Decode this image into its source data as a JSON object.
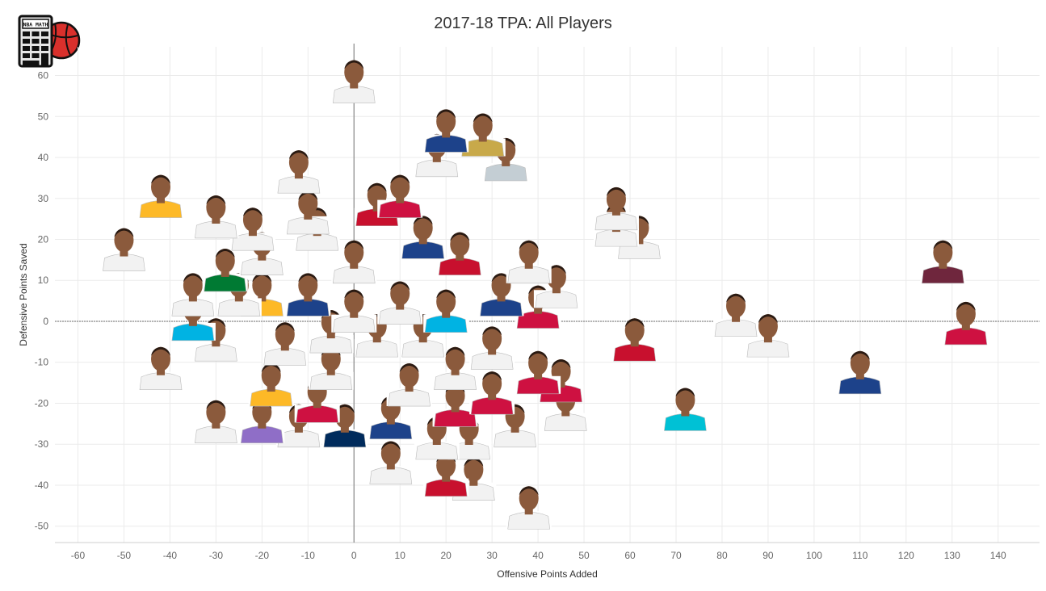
{
  "title": "2017-18 TPA: All Players",
  "logo": {
    "text": "NBA MATH"
  },
  "chart_data": {
    "type": "scatter",
    "title": "2017-18 TPA: All Players",
    "xlabel": "Offensive Points Added",
    "ylabel": "Defensive Points Saved",
    "xlim": [
      -65,
      149
    ],
    "ylim": [
      -54,
      67
    ],
    "xticks": [
      -60,
      -50,
      -40,
      -30,
      -20,
      -10,
      0,
      10,
      20,
      30,
      40,
      50,
      60,
      70,
      80,
      90,
      100,
      110,
      120,
      130,
      140
    ],
    "yticks": [
      -50,
      -40,
      -30,
      -20,
      -10,
      0,
      10,
      20,
      30,
      40,
      50,
      60
    ],
    "grid": true,
    "reference_lines": {
      "x": 0,
      "y": 0
    },
    "marker": "player headshot",
    "points": [
      {
        "x": 0,
        "y": 60,
        "jersey": "#f2f2f2"
      },
      {
        "x": 20,
        "y": 48,
        "jersey": "#1d428a"
      },
      {
        "x": 28,
        "y": 47,
        "jersey": "#c8a94a"
      },
      {
        "x": 33,
        "y": 41,
        "jersey": "#c4ced4"
      },
      {
        "x": 18,
        "y": 42,
        "jersey": "#f2f2f2"
      },
      {
        "x": -12,
        "y": 38,
        "jersey": "#f2f2f2"
      },
      {
        "x": -42,
        "y": 32,
        "jersey": "#fdb927"
      },
      {
        "x": 57,
        "y": 29,
        "jersey": "#f2f2f2"
      },
      {
        "x": 57,
        "y": 25,
        "jersey": "#f2f2f2"
      },
      {
        "x": 62,
        "y": 22,
        "jersey": "#f2f2f2"
      },
      {
        "x": -50,
        "y": 19,
        "jersey": "#f2f2f2"
      },
      {
        "x": 128,
        "y": 16,
        "jersey": "#6f263d"
      },
      {
        "x": -30,
        "y": 27,
        "jersey": "#f2f2f2"
      },
      {
        "x": -10,
        "y": 28,
        "jersey": "#f2f2f2"
      },
      {
        "x": 15,
        "y": 22,
        "jersey": "#1d428a"
      },
      {
        "x": 23,
        "y": 18,
        "jersey": "#c8102e"
      },
      {
        "x": 38,
        "y": 16,
        "jersey": "#f2f2f2"
      },
      {
        "x": 44,
        "y": 10,
        "jersey": "#f2f2f2"
      },
      {
        "x": 83,
        "y": 3,
        "jersey": "#f2f2f2"
      },
      {
        "x": 90,
        "y": -2,
        "jersey": "#f2f2f2"
      },
      {
        "x": 133,
        "y": 1,
        "jersey": "#ce1141"
      },
      {
        "x": 61,
        "y": -3,
        "jersey": "#c8102e"
      },
      {
        "x": 110,
        "y": -11,
        "jersey": "#1d428a"
      },
      {
        "x": 72,
        "y": -20,
        "jersey": "#00c1d5"
      },
      {
        "x": -42,
        "y": -10,
        "jersey": "#f2f2f2"
      },
      {
        "x": -30,
        "y": -23,
        "jersey": "#f2f2f2"
      },
      {
        "x": -20,
        "y": -23,
        "jersey": "#8f6ec7"
      },
      {
        "x": -12,
        "y": -24,
        "jersey": "#f2f2f2"
      },
      {
        "x": -35,
        "y": 8,
        "jersey": "#f2f2f2"
      },
      {
        "x": -35,
        "y": 2,
        "jersey": "#00b3e3"
      },
      {
        "x": -30,
        "y": -3,
        "jersey": "#f2f2f2"
      },
      {
        "x": -20,
        "y": 8,
        "jersey": "#fdb927"
      },
      {
        "x": -10,
        "y": 8,
        "jersey": "#1d428a"
      },
      {
        "x": -5,
        "y": -1,
        "jersey": "#f2f2f2"
      },
      {
        "x": 5,
        "y": -2,
        "jersey": "#f2f2f2"
      },
      {
        "x": 15,
        "y": -2,
        "jersey": "#f2f2f2"
      },
      {
        "x": 22,
        "y": -10,
        "jersey": "#f2f2f2"
      },
      {
        "x": 30,
        "y": -5,
        "jersey": "#f2f2f2"
      },
      {
        "x": 40,
        "y": -11,
        "jersey": "#ce1141"
      },
      {
        "x": 45,
        "y": -13,
        "jersey": "#ce1141"
      },
      {
        "x": 22,
        "y": -19,
        "jersey": "#ce1141"
      },
      {
        "x": 35,
        "y": -24,
        "jersey": "#f2f2f2"
      },
      {
        "x": 8,
        "y": -22,
        "jersey": "#1d428a"
      },
      {
        "x": -2,
        "y": -24,
        "jersey": "#002b5c"
      },
      {
        "x": 8,
        "y": -33,
        "jersey": "#f2f2f2"
      },
      {
        "x": 20,
        "y": -36,
        "jersey": "#c8102e"
      },
      {
        "x": 26,
        "y": -37,
        "jersey": "#f2f2f2"
      },
      {
        "x": 38,
        "y": -44,
        "jersey": "#f2f2f2"
      },
      {
        "x": 40,
        "y": 5,
        "jersey": "#ce1141"
      },
      {
        "x": -20,
        "y": 18,
        "jersey": "#f2f2f2"
      },
      {
        "x": 0,
        "y": 16,
        "jersey": "#f2f2f2"
      },
      {
        "x": 5,
        "y": 30,
        "jersey": "#c8102e"
      },
      {
        "x": 10,
        "y": 32,
        "jersey": "#ce1141"
      },
      {
        "x": -28,
        "y": 14,
        "jersey": "#007a33"
      },
      {
        "x": -25,
        "y": 8,
        "jersey": "#f2f2f2"
      },
      {
        "x": 0,
        "y": 4,
        "jersey": "#f2f2f2"
      },
      {
        "x": 10,
        "y": 6,
        "jersey": "#f2f2f2"
      },
      {
        "x": 20,
        "y": 4,
        "jersey": "#00b3e3"
      },
      {
        "x": 32,
        "y": 8,
        "jersey": "#1d428a"
      },
      {
        "x": -15,
        "y": -4,
        "jersey": "#f2f2f2"
      },
      {
        "x": -5,
        "y": -10,
        "jersey": "#f2f2f2"
      },
      {
        "x": 12,
        "y": -14,
        "jersey": "#f2f2f2"
      },
      {
        "x": -18,
        "y": -14,
        "jersey": "#fdb927"
      },
      {
        "x": -8,
        "y": -18,
        "jersey": "#ce1141"
      },
      {
        "x": 30,
        "y": -16,
        "jersey": "#ce1141"
      },
      {
        "x": 46,
        "y": -20,
        "jersey": "#f2f2f2"
      },
      {
        "x": -8,
        "y": 24,
        "jersey": "#f2f2f2"
      },
      {
        "x": -22,
        "y": 24,
        "jersey": "#f2f2f2"
      },
      {
        "x": 25,
        "y": -27,
        "jersey": "#f2f2f2"
      },
      {
        "x": 18,
        "y": -27,
        "jersey": "#f2f2f2"
      }
    ]
  },
  "colors": {
    "background": "#ffffff",
    "grid": "#ebebeb",
    "refline": "#888888",
    "skin": "#8b5a3c"
  }
}
